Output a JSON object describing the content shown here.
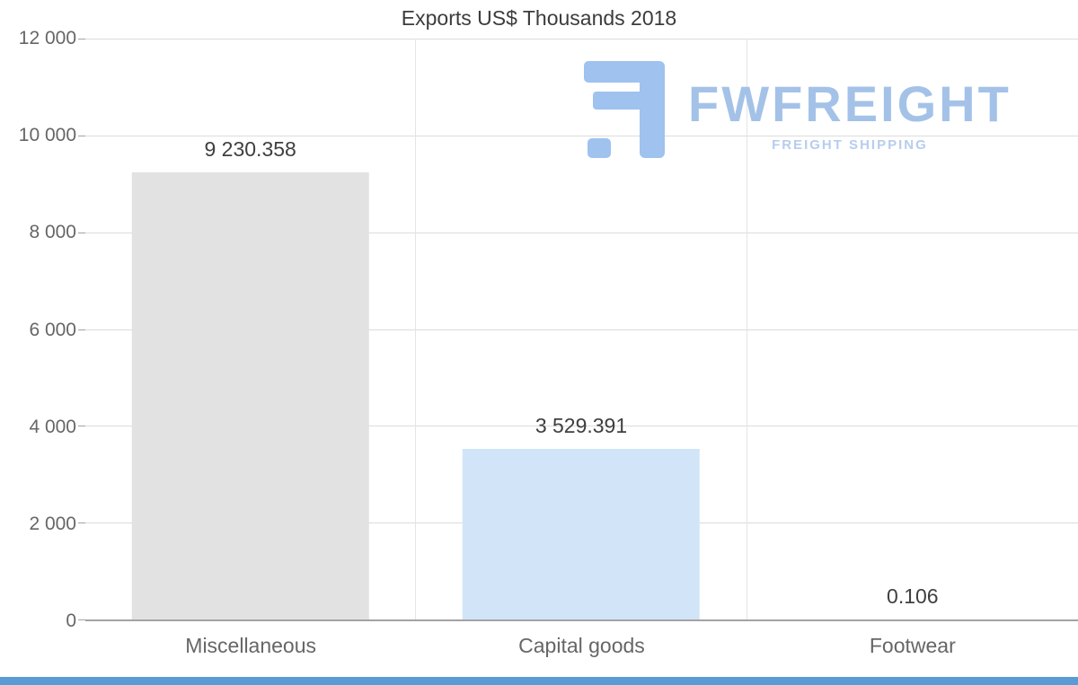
{
  "chart_data": {
    "type": "bar",
    "title": "Exports US$ Thousands 2018",
    "categories": [
      "Miscellaneous",
      "Capital goods",
      "Footwear"
    ],
    "values": [
      9230.358,
      3529.391,
      0.106
    ],
    "value_labels": [
      "9 230.358",
      "3 529.391",
      "0.106"
    ],
    "bar_colors": [
      "#e2e2e2",
      "#d2e4f8",
      "#d2e4f8"
    ],
    "xlabel": "",
    "ylabel": "",
    "ylim": [
      0,
      12000
    ],
    "yticks": [
      0,
      2000,
      4000,
      6000,
      8000,
      10000,
      12000
    ],
    "ytick_labels": [
      "0",
      "2 000",
      "4 000",
      "6 000",
      "8 000",
      "10 000",
      "12 000"
    ],
    "grid": "horizontal gridlines with vertical category separators",
    "legend": "none"
  },
  "watermark": {
    "brand": "FWFREIGHT",
    "tagline": "FREIGHT SHIPPING",
    "icon": "fwfreight-f-logo"
  },
  "colors": {
    "grid": "#dcdcdc",
    "separator": "#e4e4e4",
    "axis": "#a3a3a3",
    "label_text": "#666666",
    "value_text": "#3f3f3f",
    "title_text": "#3c3c3c",
    "bar_gray": "#e2e2e2",
    "bar_blue": "#d2e4f8",
    "watermark_brand": "#a4c2e8",
    "watermark_tagline": "#b6cdee",
    "watermark_glyph": "#9fc2ef",
    "bottom_bar": "#5b9bd5"
  }
}
